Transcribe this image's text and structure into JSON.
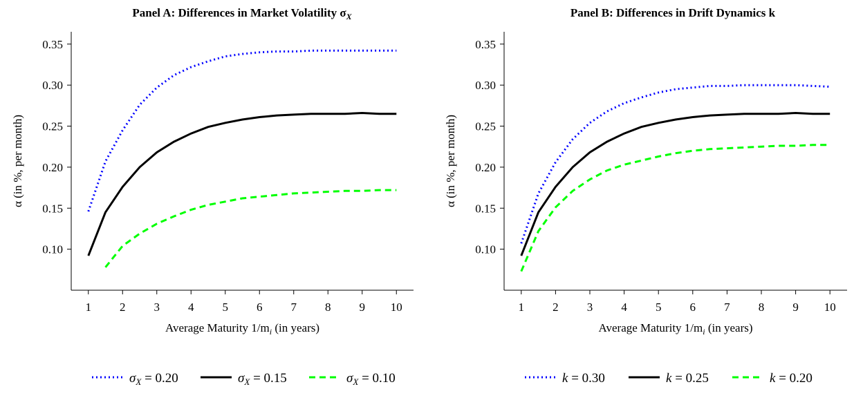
{
  "chart_data": [
    {
      "type": "line",
      "title": "Panel A: Differences in Market Volatility σ",
      "title_sub": "X",
      "xlabel": "Average Maturity 1/m",
      "xlabel_sub": "i",
      "xlabel_tail": " (in years)",
      "ylabel": "α (in %, per month)",
      "xlim": [
        0.5,
        10.5
      ],
      "ylim": [
        0.05,
        0.365
      ],
      "xticks": [
        1,
        2,
        3,
        4,
        5,
        6,
        7,
        8,
        9,
        10
      ],
      "yticks": [
        0.1,
        0.15,
        0.2,
        0.25,
        0.3,
        0.35
      ],
      "ytick_labels": [
        "0.10",
        "0.15",
        "0.20",
        "0.25",
        "0.30",
        "0.35"
      ],
      "x": [
        1,
        1.5,
        2,
        2.5,
        3,
        3.5,
        4,
        4.5,
        5,
        5.5,
        6,
        6.5,
        7,
        7.5,
        8,
        8.5,
        9,
        9.5,
        10
      ],
      "series": [
        {
          "name_var": "σ",
          "name_sub": "X",
          "name_rest": " = 0.20",
          "color": "#0000ff",
          "dash": "dotted",
          "x": [
            1,
            1.5,
            2,
            2.5,
            3,
            3.5,
            4,
            4.5,
            5,
            5.5,
            6,
            6.5,
            7,
            7.5,
            8,
            8.5,
            9,
            9.5,
            10
          ],
          "values": [
            0.146,
            0.207,
            0.245,
            0.276,
            0.297,
            0.312,
            0.322,
            0.329,
            0.335,
            0.338,
            0.34,
            0.341,
            0.341,
            0.342,
            0.342,
            0.342,
            0.342,
            0.342,
            0.342
          ]
        },
        {
          "name_var": "σ",
          "name_sub": "X",
          "name_rest": " = 0.15",
          "color": "#000000",
          "dash": "solid",
          "x": [
            1,
            1.5,
            2,
            2.5,
            3,
            3.5,
            4,
            4.5,
            5,
            5.5,
            6,
            6.5,
            7,
            7.5,
            8,
            8.5,
            9,
            9.5,
            10
          ],
          "values": [
            0.092,
            0.145,
            0.176,
            0.2,
            0.218,
            0.231,
            0.241,
            0.249,
            0.254,
            0.258,
            0.261,
            0.263,
            0.264,
            0.265,
            0.265,
            0.265,
            0.266,
            0.265,
            0.265
          ]
        },
        {
          "name_var": "σ",
          "name_sub": "X",
          "name_rest": " = 0.10",
          "color": "#00ff00",
          "dash": "dashed",
          "x": [
            1.5,
            2,
            2.5,
            3,
            3.5,
            4,
            4.5,
            5,
            5.5,
            6,
            6.5,
            7,
            7.5,
            8,
            8.5,
            9,
            9.5,
            10
          ],
          "values": [
            0.078,
            0.104,
            0.119,
            0.131,
            0.14,
            0.148,
            0.154,
            0.158,
            0.162,
            0.164,
            0.166,
            0.168,
            0.169,
            0.17,
            0.171,
            0.171,
            0.172,
            0.172
          ]
        }
      ]
    },
    {
      "type": "line",
      "title": "Panel B: Differences in Drift Dynamics k",
      "title_sub": "",
      "xlabel": "Average Maturity 1/m",
      "xlabel_sub": "i",
      "xlabel_tail": " (in years)",
      "ylabel": "α (in %, per month)",
      "xlim": [
        0.5,
        10.5
      ],
      "ylim": [
        0.05,
        0.365
      ],
      "xticks": [
        1,
        2,
        3,
        4,
        5,
        6,
        7,
        8,
        9,
        10
      ],
      "yticks": [
        0.1,
        0.15,
        0.2,
        0.25,
        0.3,
        0.35
      ],
      "ytick_labels": [
        "0.10",
        "0.15",
        "0.20",
        "0.25",
        "0.30",
        "0.35"
      ],
      "series": [
        {
          "name_var": "k",
          "name_sub": "",
          "name_rest": " = 0.30",
          "color": "#0000ff",
          "dash": "dotted",
          "x": [
            1,
            1.5,
            2,
            2.5,
            3,
            3.5,
            4,
            4.5,
            5,
            5.5,
            6,
            6.5,
            7,
            7.5,
            8,
            8.5,
            9,
            9.5,
            10
          ],
          "values": [
            0.107,
            0.168,
            0.206,
            0.234,
            0.254,
            0.268,
            0.278,
            0.285,
            0.291,
            0.295,
            0.297,
            0.299,
            0.299,
            0.3,
            0.3,
            0.3,
            0.3,
            0.299,
            0.298
          ]
        },
        {
          "name_var": "k",
          "name_sub": "",
          "name_rest": " = 0.25",
          "color": "#000000",
          "dash": "solid",
          "x": [
            1,
            1.5,
            2,
            2.5,
            3,
            3.5,
            4,
            4.5,
            5,
            5.5,
            6,
            6.5,
            7,
            7.5,
            8,
            8.5,
            9,
            9.5,
            10
          ],
          "values": [
            0.092,
            0.145,
            0.176,
            0.2,
            0.218,
            0.231,
            0.241,
            0.249,
            0.254,
            0.258,
            0.261,
            0.263,
            0.264,
            0.265,
            0.265,
            0.265,
            0.266,
            0.265,
            0.265
          ]
        },
        {
          "name_var": "k",
          "name_sub": "",
          "name_rest": " = 0.20",
          "color": "#00ff00",
          "dash": "dashed",
          "x": [
            1,
            1.5,
            2,
            2.5,
            3,
            3.5,
            4,
            4.5,
            5,
            5.5,
            6,
            6.5,
            7,
            7.5,
            8,
            8.5,
            9,
            9.5,
            10
          ],
          "values": [
            0.073,
            0.122,
            0.151,
            0.171,
            0.185,
            0.196,
            0.203,
            0.208,
            0.213,
            0.217,
            0.22,
            0.222,
            0.223,
            0.224,
            0.225,
            0.226,
            0.226,
            0.227,
            0.227
          ]
        }
      ]
    }
  ]
}
